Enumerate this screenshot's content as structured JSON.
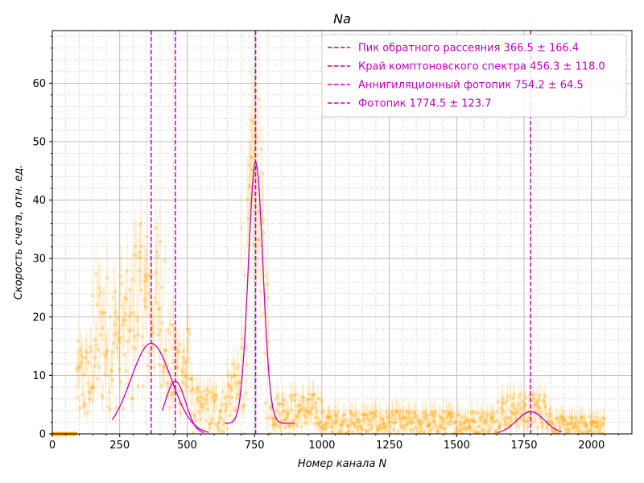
{
  "chart_data": {
    "type": "scatter",
    "title": "Na",
    "xlabel": "Номер канала N",
    "ylabel": "Скорость счета,  отн. ед.",
    "xlim": [
      0,
      2150
    ],
    "ylim": [
      0,
      69
    ],
    "x_ticks": [
      0,
      250,
      500,
      750,
      1000,
      1250,
      1500,
      1750,
      2000
    ],
    "y_ticks": [
      0,
      10,
      20,
      30,
      40,
      50,
      60
    ],
    "grid": true,
    "minor_grid": true,
    "legend_position": "top-right",
    "colors": {
      "points": "#ffa500",
      "fit": "#c000c0",
      "vlines": "#c000c0"
    },
    "vlines": [
      {
        "x": 366.5,
        "label": "Пик обратного рассеяния 366.5 ± 166.4"
      },
      {
        "x": 456.3,
        "label": "Край комптоновского спектра 456.3 ± 118.0"
      },
      {
        "x": 754.2,
        "label": "Аннигиляционный фотопик 754.2  ± 64.5"
      },
      {
        "x": 1774.5,
        "label": "Фотопик 1774.5 ± 123.7"
      }
    ],
    "fits": [
      {
        "name": "backscatter",
        "center": 366.5,
        "amplitude": 15.5,
        "sigma": 75,
        "baseline": 0,
        "x_range": [
          222,
          580
        ]
      },
      {
        "name": "compton-edge",
        "center": 456.3,
        "amplitude": 9.0,
        "sigma": 38,
        "baseline": 0,
        "x_range": [
          408,
          560
        ]
      },
      {
        "name": "annihilation",
        "center": 754.2,
        "amplitude": 44.7,
        "sigma": 27,
        "baseline": 1.8,
        "x_range": [
          640,
          900
        ]
      },
      {
        "name": "photopeak",
        "center": 1774.5,
        "amplitude": 3.8,
        "sigma": 52,
        "baseline": 0,
        "x_range": [
          1650,
          1890
        ]
      }
    ],
    "data_regions": [
      {
        "x_range": [
          0,
          90
        ],
        "level": 0,
        "spread": 0
      },
      {
        "x_range": [
          90,
          150
        ],
        "level": 9,
        "spread": 7
      },
      {
        "x_range": [
          150,
          300
        ],
        "level": 16,
        "spread": 12
      },
      {
        "x_range": [
          300,
          420
        ],
        "level": 22,
        "spread": 14
      },
      {
        "x_range": [
          420,
          520
        ],
        "level": 11,
        "spread": 8
      },
      {
        "x_range": [
          520,
          650
        ],
        "level": 4,
        "spread": 4
      },
      {
        "x_range": [
          650,
          700
        ],
        "level": 7,
        "spread": 5
      },
      {
        "x_range": [
          700,
          810
        ],
        "level": 35,
        "spread": 15
      },
      {
        "x_range": [
          810,
          1000
        ],
        "level": 4,
        "spread": 3
      },
      {
        "x_range": [
          1000,
          1650
        ],
        "level": 2,
        "spread": 2
      },
      {
        "x_range": [
          1650,
          1850
        ],
        "level": 4,
        "spread": 3
      },
      {
        "x_range": [
          1850,
          2050
        ],
        "level": 1.5,
        "spread": 1.5
      }
    ]
  }
}
